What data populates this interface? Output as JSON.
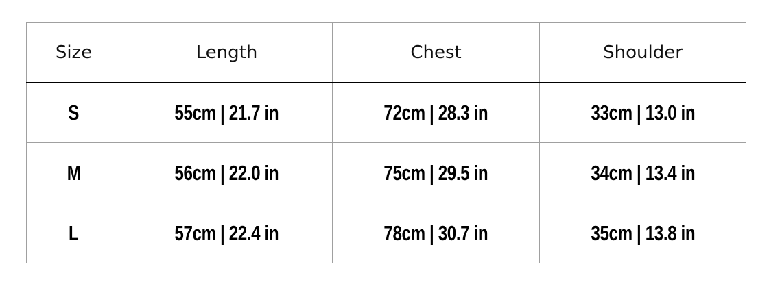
{
  "table": {
    "headers": [
      "Size",
      "Length",
      "Chest",
      "Shoulder"
    ],
    "rows": [
      [
        "S",
        "55cm | 21.7 in",
        "72cm | 28.3 in",
        "33cm | 13.0 in"
      ],
      [
        "M",
        "56cm | 22.0 in",
        "75cm | 29.5 in",
        "34cm | 13.4 in"
      ],
      [
        "L",
        "57cm | 22.4 in",
        "78cm | 30.7 in",
        "35cm | 13.8 in"
      ]
    ]
  }
}
